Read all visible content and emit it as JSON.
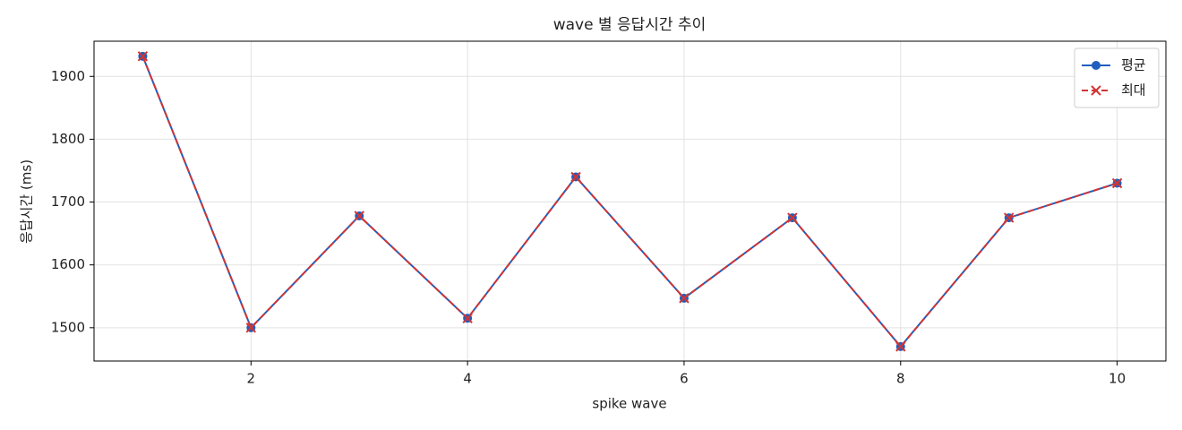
{
  "chart_data": {
    "type": "line",
    "title": "wave 별 응답시간 추이",
    "x_label": "spike wave",
    "y_label": "응답시간 (ms)",
    "x": [
      1,
      2,
      3,
      4,
      5,
      6,
      7,
      8,
      9,
      10
    ],
    "series": [
      {
        "name": "평균",
        "color": "#1f5fbf",
        "marker": "o",
        "dash": "solid",
        "values": [
          1932,
          1500,
          1678,
          1515,
          1740,
          1547,
          1675,
          1470,
          1675,
          1730
        ]
      },
      {
        "name": "최대",
        "color": "#d03535",
        "marker": "x",
        "dash": "dashed",
        "values": [
          1932,
          1500,
          1678,
          1515,
          1740,
          1547,
          1675,
          1470,
          1675,
          1730
        ]
      }
    ],
    "xlim": [
      0.55,
      10.45
    ],
    "ylim": [
      1447,
      1956
    ],
    "xticks": [
      2,
      4,
      6,
      8,
      10
    ],
    "yticks": [
      1500,
      1600,
      1700,
      1800,
      1900
    ],
    "grid": true,
    "legend": "upper right"
  }
}
